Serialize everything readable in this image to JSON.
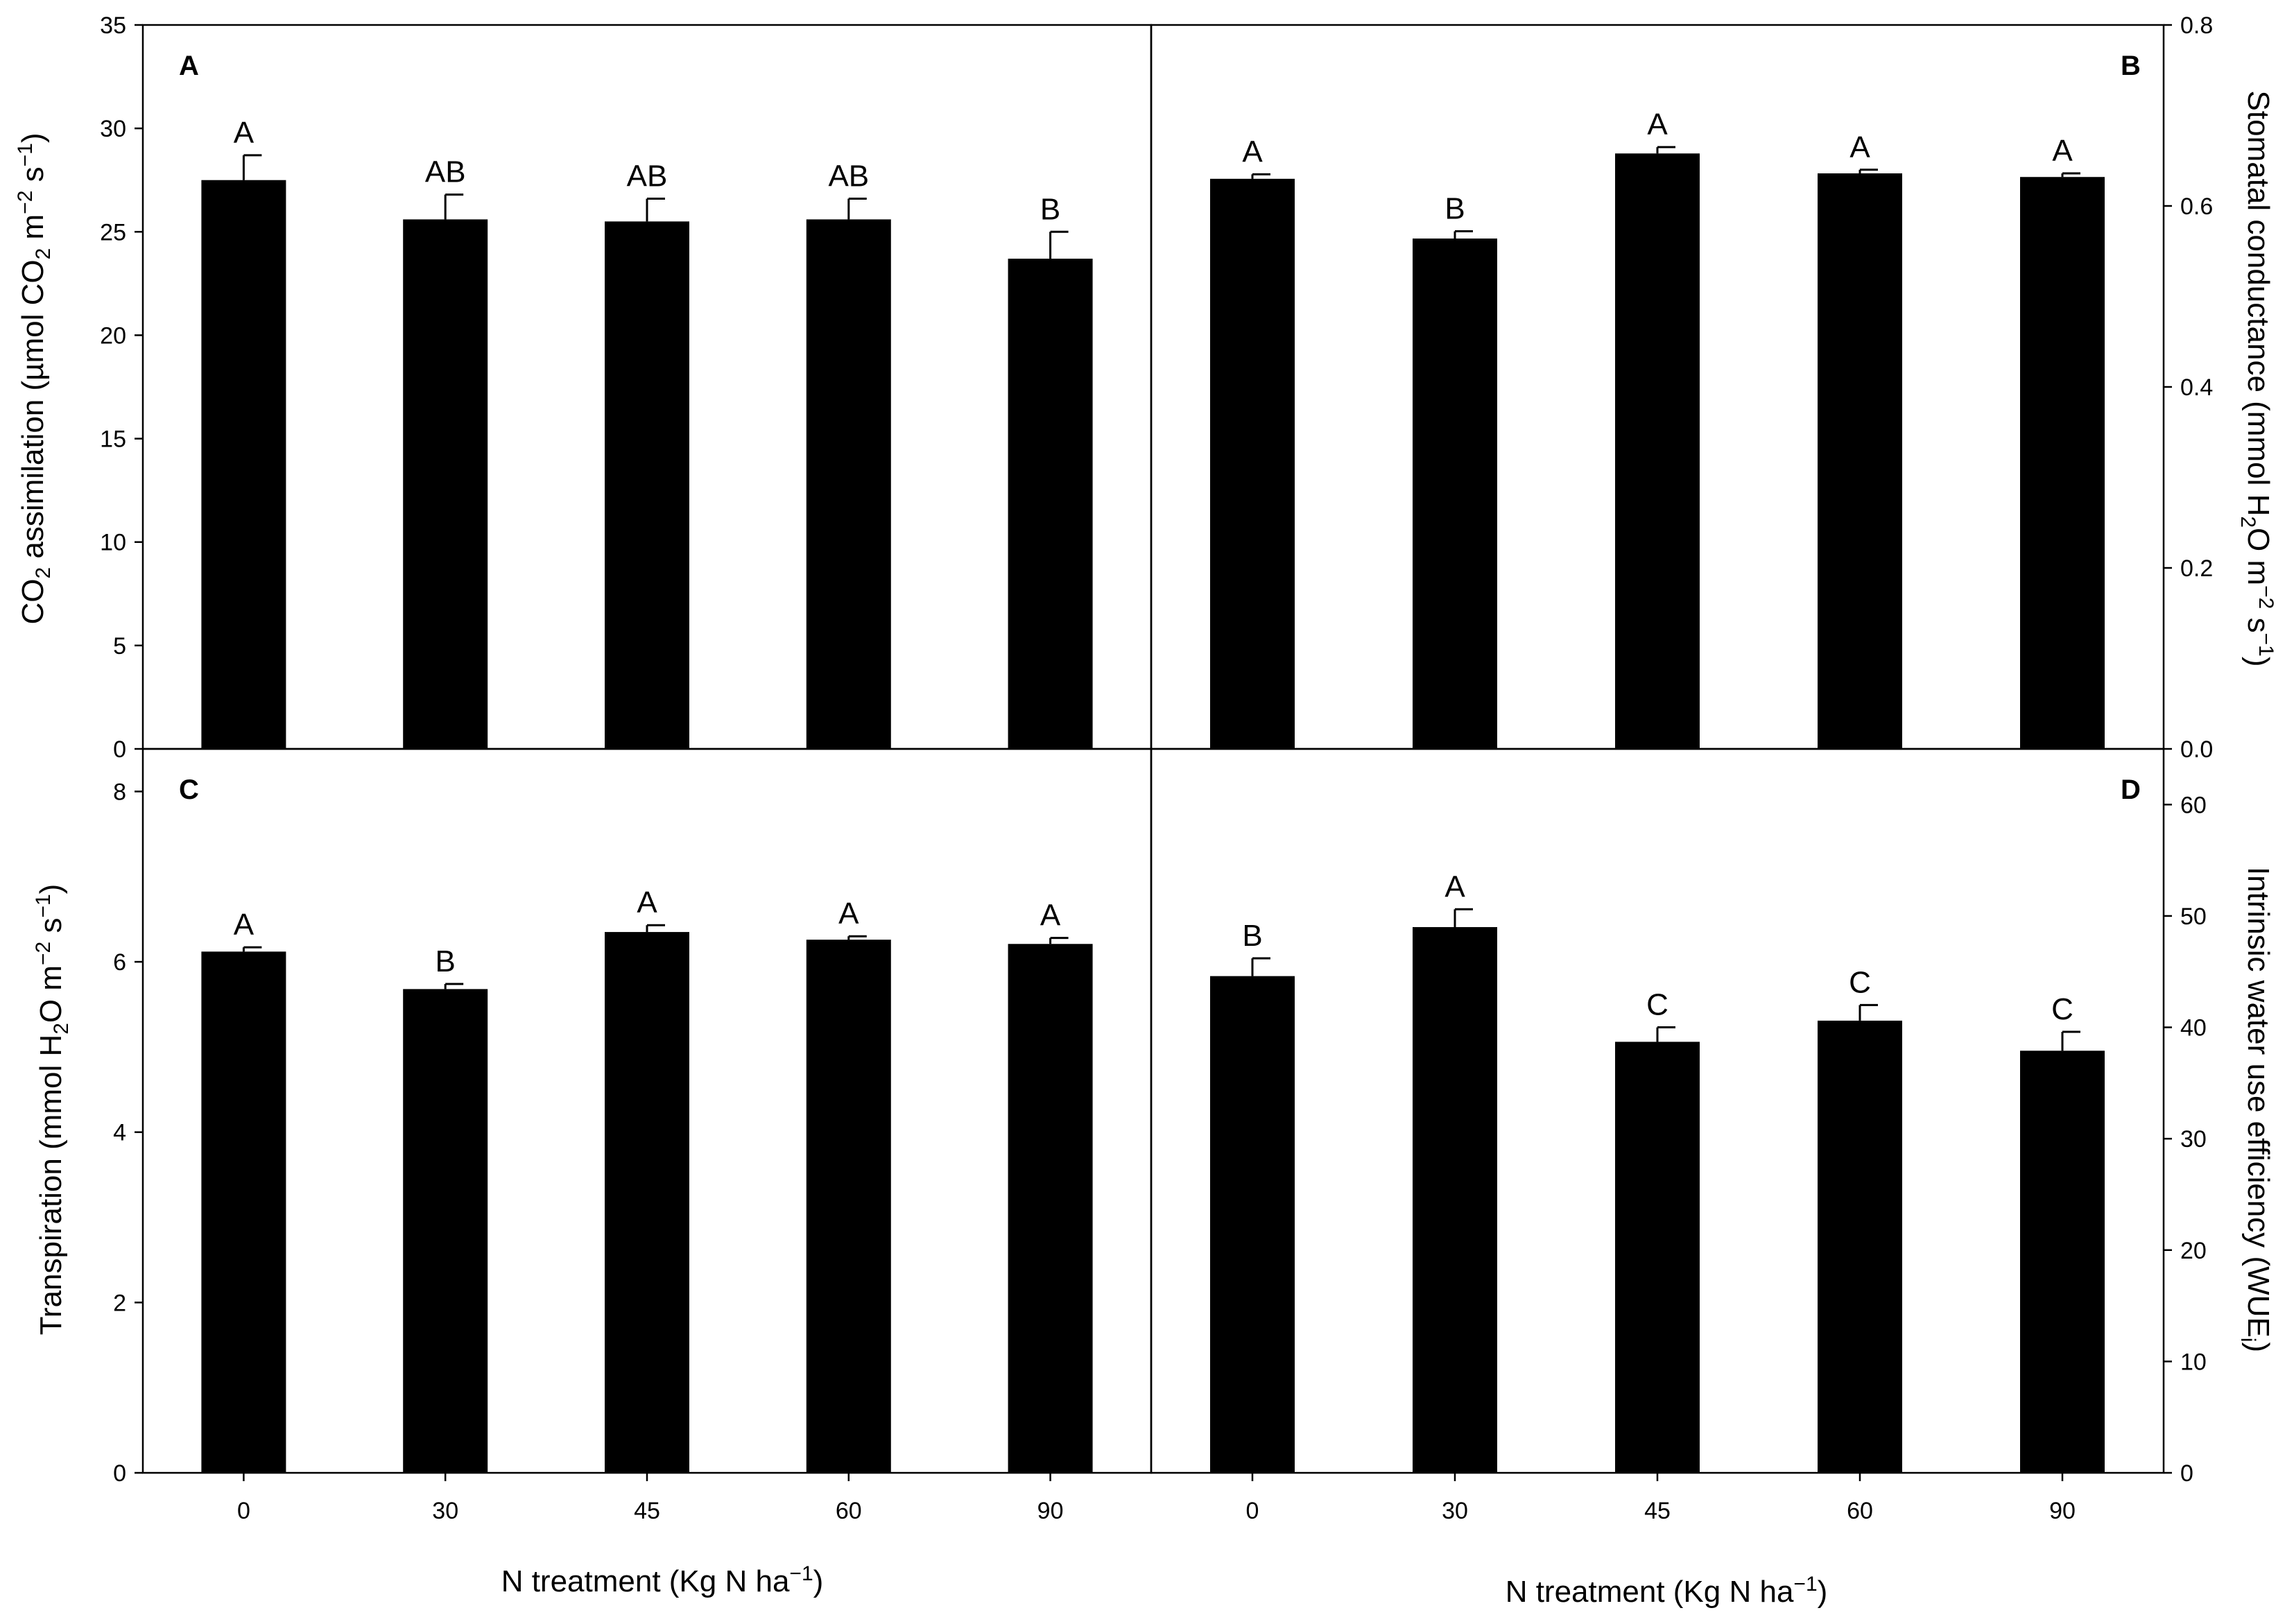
{
  "figure": {
    "xlabel_bottom_left": "N treatment (Kg N ha",
    "xlabel_bottom_right": "N treatment (Kg N ha",
    "xlabel_superscript": "−1",
    "xlabel_suffix": ")"
  },
  "chart_data": [
    {
      "panel": "A",
      "type": "bar",
      "categories": [
        "0",
        "30",
        "45",
        "60",
        "90"
      ],
      "values": [
        27.5,
        25.6,
        25.5,
        25.6,
        23.7
      ],
      "errors": [
        1.2,
        1.2,
        1.1,
        1.0,
        1.3
      ],
      "significance": [
        "A",
        "AB",
        "AB",
        "AB",
        "B"
      ],
      "ylabel": "CO2 assimilation (µmol CO2 m−2 s−1)",
      "ylim": [
        0,
        35
      ],
      "yticks": [
        0,
        5,
        10,
        15,
        20,
        25,
        30,
        35
      ],
      "ytick_labels": [
        "0",
        "5",
        "10",
        "15",
        "20",
        "25",
        "30",
        "35"
      ],
      "y_axis_side": "left",
      "grid": false,
      "bar_color": "#000000"
    },
    {
      "panel": "B",
      "type": "bar",
      "categories": [
        "0",
        "30",
        "45",
        "60",
        "90"
      ],
      "values": [
        0.63,
        0.564,
        0.658,
        0.636,
        0.632
      ],
      "errors": [
        0.005,
        0.008,
        0.007,
        0.004,
        0.004
      ],
      "significance": [
        "A",
        "B",
        "A",
        "A",
        "A"
      ],
      "ylabel": "Stomatal conductance (mmol H2O m−2 s−1)",
      "ylim": [
        0,
        0.8
      ],
      "yticks": [
        0,
        0.2,
        0.4,
        0.6,
        0.8
      ],
      "ytick_labels": [
        "0.0",
        "0.2",
        "0.4",
        "0.6",
        "0.8"
      ],
      "y_axis_side": "right",
      "grid": false,
      "bar_color": "#000000"
    },
    {
      "panel": "C",
      "type": "bar",
      "categories": [
        "0",
        "30",
        "45",
        "60",
        "90"
      ],
      "values": [
        6.12,
        5.68,
        6.35,
        6.26,
        6.21
      ],
      "errors": [
        0.05,
        0.06,
        0.08,
        0.04,
        0.07
      ],
      "significance": [
        "A",
        "B",
        "A",
        "A",
        "A"
      ],
      "ylabel": "Transpiration (mmol H2O m−2 s−1)",
      "ylim": [
        0,
        8.5
      ],
      "yticks": [
        0,
        2,
        4,
        6,
        8
      ],
      "ytick_labels": [
        "0",
        "2",
        "4",
        "6",
        "8"
      ],
      "y_axis_side": "left",
      "grid": false,
      "bar_color": "#000000"
    },
    {
      "panel": "D",
      "type": "bar",
      "categories": [
        "0",
        "30",
        "45",
        "60",
        "90"
      ],
      "values": [
        44.6,
        49.0,
        38.7,
        40.6,
        37.9
      ],
      "errors": [
        1.6,
        1.6,
        1.3,
        1.4,
        1.7
      ],
      "significance": [
        "B",
        "A",
        "C",
        "C",
        "C"
      ],
      "ylabel": "Intrinsic water use efficiency (WUEi)",
      "ylim": [
        0,
        65
      ],
      "yticks": [
        0,
        10,
        20,
        30,
        40,
        50,
        60
      ],
      "ytick_labels": [
        "0",
        "10",
        "20",
        "30",
        "40",
        "50",
        "60"
      ],
      "y_axis_side": "right",
      "grid": false,
      "bar_color": "#000000"
    }
  ]
}
